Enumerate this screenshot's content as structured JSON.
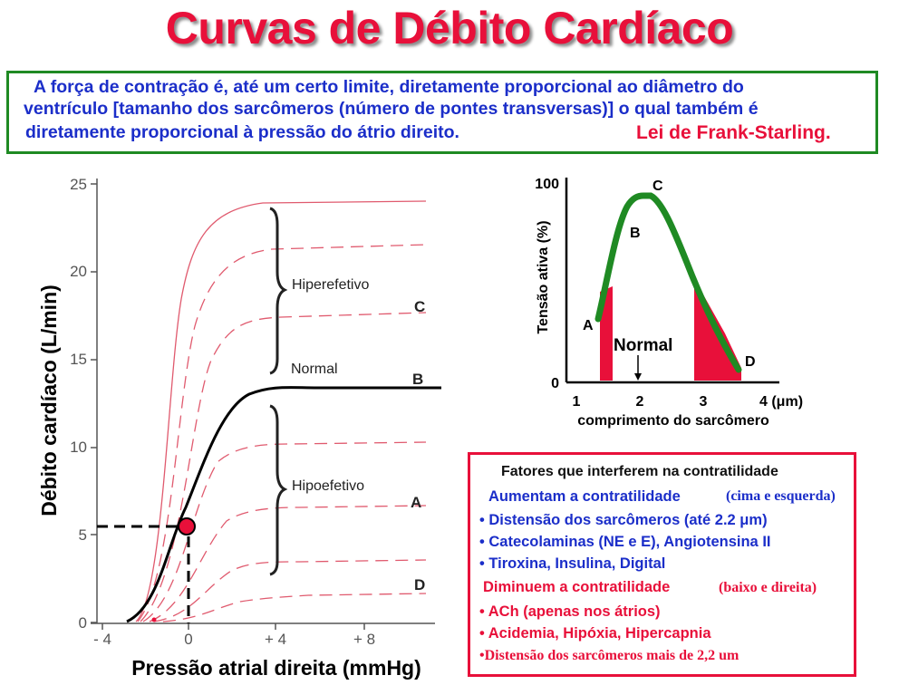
{
  "title": "Curvas de Débito Cardíaco",
  "intro": {
    "line1": "A força de contração é, até um certo limite, diretamente proporcional ao diâmetro do",
    "line2": "ventrículo [tamanho dos sarcômeros (número de pontes transversas)] o qual também é",
    "line3": "diretamente proporcional à pressão do átrio direito.",
    "law": "Lei de Frank-Starling."
  },
  "main_chart": {
    "ylabel": "Débito cardíaco (L/min)",
    "xlabel": "Pressão atrial direita (mmHg)",
    "yticks": [
      "0",
      "5",
      "10",
      "15",
      "20",
      "25"
    ],
    "xticks": [
      "- 4",
      "0",
      "+ 4",
      "+ 8"
    ],
    "labels": {
      "hyper": "Hiperefetivo",
      "normal": "Normal",
      "hypo": "Hipoefetivo",
      "C": "C",
      "B": "B",
      "A": "A",
      "D": "D"
    },
    "marker": {
      "x": 0,
      "y": 5.3
    },
    "colors": {
      "normal": "#000000",
      "other": "#e05a6e",
      "marker": "#e8103a"
    }
  },
  "inset_chart": {
    "ylabel": "Tensão ativa (%)",
    "xlabel": "comprimento do sarcômero",
    "yticks": [
      "0",
      "100"
    ],
    "xticks": [
      "1",
      "2",
      "3",
      "4  (μm)"
    ],
    "points": {
      "A": "A",
      "B": "B",
      "C": "C",
      "D": "D"
    },
    "normal_label": "Normal",
    "colors": {
      "curve": "#1f8a23",
      "fill": "#e8103a"
    }
  },
  "factors": {
    "heading": "Fatores que interferem na contratilidade",
    "increase_title": "Aumentam a contratilidade",
    "increase_note": "(cima e esquerda)",
    "increase_items": [
      "• Distensão dos sarcômeros (até 2.2 μm)",
      "• Catecolaminas (NE e E), Angiotensina II",
      "• Tiroxina, Insulina, Digital"
    ],
    "decrease_title": "Diminuem a contratilidade",
    "decrease_note": "(baixo e direita)",
    "decrease_items": [
      "• ACh (apenas nos átrios)",
      "• Acidemia, Hipóxia, Hipercapnia",
      "•Distensão dos sarcômeros mais de 2,2 um"
    ]
  }
}
